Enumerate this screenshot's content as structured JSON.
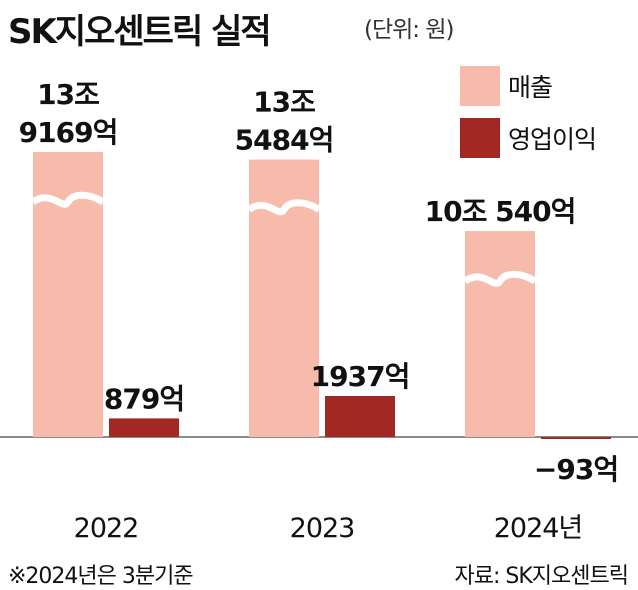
{
  "header": {
    "title": "SK지오센트릭 실적",
    "unit": "(단위: 원)"
  },
  "legend": [
    {
      "label": "매출",
      "color": "#f6bbaa"
    },
    {
      "label": "영업이익",
      "color": "#a32722"
    }
  ],
  "chart_data": {
    "type": "bar",
    "categories": [
      "2022",
      "2023",
      "2024년"
    ],
    "series": [
      {
        "name": "매출",
        "color": "#f6bbaa",
        "values": [
          139169,
          135484,
          100540
        ],
        "labels": [
          [
            "13조",
            "9169억"
          ],
          [
            "13조",
            "5484억"
          ],
          [
            "10조 540억"
          ]
        ]
      },
      {
        "name": "영업이익",
        "color": "#a32722",
        "values": [
          879,
          1937,
          -93
        ],
        "labels": [
          [
            "879억"
          ],
          [
            "1937억"
          ],
          [
            "−93억"
          ]
        ]
      }
    ],
    "value_unit": "억원",
    "axis_break": "revenue bars drawn with a wavy break",
    "grid": false,
    "legend_position": "top-right"
  },
  "footer": {
    "note": "※2024년은 3분기준",
    "source": "자료: SK지오센트릭"
  }
}
